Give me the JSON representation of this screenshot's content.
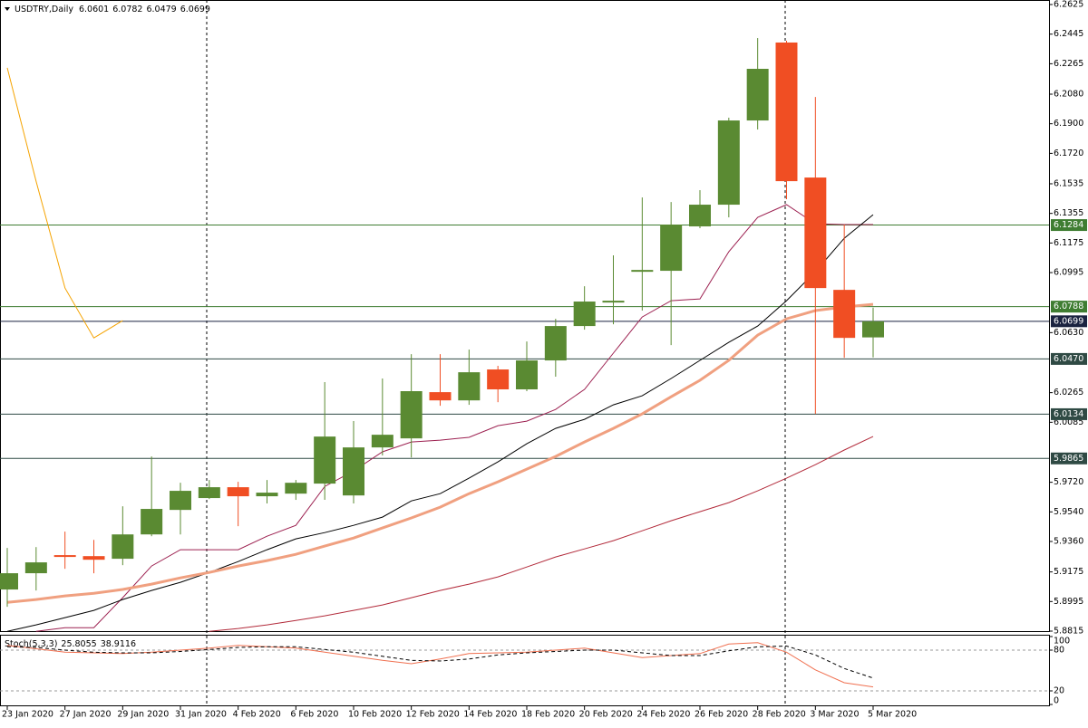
{
  "chart_data": {
    "type": "candlestick",
    "title": "USDTRY,Daily",
    "x": [
      "23 Jan 2020",
      null,
      "27 Jan 2020",
      null,
      "29 Jan 2020",
      null,
      "31 Jan 2020",
      null,
      "4 Feb 2020",
      null,
      "6 Feb 2020",
      null,
      "10 Feb 2020",
      null,
      "12 Feb 2020",
      null,
      "14 Feb 2020",
      null,
      "18 Feb 2020",
      null,
      "20 Feb 2020",
      null,
      "24 Feb 2020",
      null,
      "26 Feb 2020",
      null,
      "28 Feb 2020",
      null,
      "3 Mar 2020",
      null,
      "5 Mar 2020"
    ],
    "open": [
      5.9068,
      5.9167,
      5.9277,
      5.9271,
      5.9255,
      5.9403,
      5.9552,
      5.9624,
      5.969,
      5.9635,
      5.9651,
      5.9712,
      5.964,
      5.9932,
      5.9987,
      6.0268,
      6.0218,
      6.0406,
      6.0285,
      6.0461,
      6.067,
      6.0813,
      6.1,
      6.1006,
      6.1276,
      6.1408,
      6.192,
      6.2394,
      6.1573,
      6.089,
      6.0601
    ],
    "high": [
      5.9321,
      5.9326,
      5.942,
      5.937,
      5.9574,
      5.9877,
      5.9717,
      5.9734,
      5.9723,
      5.9734,
      5.9734,
      6.0329,
      6.0092,
      6.0351,
      6.0499,
      6.0499,
      6.0527,
      6.0428,
      6.0576,
      6.0714,
      6.0912,
      6.11,
      6.1452,
      6.1424,
      6.1496,
      6.1937,
      6.2421,
      6.2405,
      6.2063,
      6.1287,
      6.0782
    ],
    "low": [
      5.8963,
      5.9062,
      5.9194,
      5.9167,
      5.9216,
      5.9392,
      5.9403,
      5.9618,
      5.9453,
      5.9591,
      5.9613,
      5.9613,
      5.9591,
      5.9883,
      5.9871,
      6.0185,
      6.0191,
      6.0207,
      6.0274,
      6.0362,
      6.0648,
      6.0681,
      6.0764,
      6.0554,
      6.1265,
      6.1331,
      6.1865,
      6.1441,
      6.0136,
      6.0477,
      6.0479
    ],
    "close": [
      5.9167,
      5.9233,
      5.9266,
      5.9249,
      5.9403,
      5.9558,
      5.9668,
      5.969,
      5.9635,
      5.9657,
      5.9717,
      5.9998,
      5.9932,
      6.0009,
      6.0274,
      6.0218,
      6.0389,
      6.0285,
      6.0461,
      6.067,
      6.0819,
      6.0824,
      6.1011,
      6.1287,
      6.1408,
      6.192,
      6.2234,
      6.1551,
      6.0901,
      6.0598,
      6.0699
    ],
    "up_color": "#5a8a32",
    "down_color": "#f04e23",
    "ylim": [
      5.8815,
      6.2625
    ],
    "yticks": [
      6.2625,
      6.2445,
      6.2265,
      {
        "value": 6.208,
        "label": "6.2080"
      },
      {
        "value": 6.19,
        "label": "6.1900"
      },
      {
        "value": 6.172,
        "label": "6.1720"
      },
      6.1535,
      6.1355,
      6.1175,
      6.0995,
      {
        "value": 6.063,
        "label": "6.0630"
      },
      6.0265,
      6.0085,
      {
        "value": 5.972,
        "label": "5.9720"
      },
      {
        "value": 5.954,
        "label": "5.9540"
      },
      {
        "value": 5.936,
        "label": "5.9360"
      },
      5.9175,
      5.8995,
      5.8815
    ],
    "overlays": [
      {
        "color": "#b22a3a",
        "width": 1,
        "values": [
          null,
          null,
          null,
          null,
          null,
          null,
          null,
          5.8814,
          5.8831,
          5.8853,
          5.888,
          5.8908,
          5.8941,
          5.8974,
          5.9018,
          5.9062,
          5.9101,
          5.9145,
          5.9205,
          5.9266,
          5.9315,
          5.9365,
          5.9425,
          5.9486,
          5.9541,
          5.9596,
          5.9668,
          5.9745,
          5.9827,
          5.9916,
          5.9998
        ]
      },
      {
        "color": "#9c2050",
        "width": 1,
        "values": [
          null,
          5.8814,
          5.8836,
          5.8836,
          5.9018,
          5.9211,
          5.931,
          5.931,
          5.931,
          5.9392,
          5.9458,
          5.9695,
          5.9789,
          5.9905,
          5.9965,
          5.9976,
          5.9993,
          6.0064,
          6.0092,
          6.0163,
          6.0285,
          6.0505,
          6.0725,
          6.0824,
          6.0835,
          6.1122,
          6.1331,
          6.1408,
          6.1292,
          6.1287,
          6.1287
        ]
      },
      {
        "color": "#000000",
        "width": 1,
        "values": [
          5.8814,
          5.8853,
          5.8897,
          5.8941,
          5.9007,
          5.9062,
          5.9112,
          5.9172,
          5.9238,
          5.931,
          5.9376,
          5.9414,
          5.9458,
          5.9508,
          5.9607,
          5.9651,
          5.9745,
          5.9844,
          5.9954,
          6.0048,
          6.0103,
          6.0191,
          6.0246,
          6.0351,
          6.0461,
          6.0571,
          6.067,
          6.0824,
          6.1,
          6.1204,
          6.1347
        ]
      },
      {
        "color": "#f0a080",
        "width": 3,
        "values": [
          5.899,
          5.9007,
          5.9029,
          5.9045,
          5.9068,
          5.9101,
          5.9139,
          5.9172,
          5.9211,
          5.9244,
          5.9282,
          5.9332,
          5.9381,
          5.9442,
          5.9503,
          5.9569,
          5.9651,
          5.9723,
          5.98,
          5.9877,
          5.9965,
          6.0048,
          6.0136,
          6.024,
          6.034,
          6.0461,
          6.0615,
          6.0714,
          6.0764,
          6.0786,
          6.0802
        ]
      },
      {
        "color": "#f5a300",
        "width": 1,
        "values": [
          6.224,
          6.1551,
          6.0901,
          6.0598,
          6.0703,
          null,
          null,
          null,
          null,
          null,
          null,
          null,
          null,
          null,
          null,
          null,
          null,
          null,
          null,
          null,
          null,
          null,
          null,
          null,
          null,
          null,
          null,
          null,
          null,
          null,
          null
        ]
      }
    ],
    "levels": [
      6.1284,
      6.0788,
      6.0699,
      {
        "value": 6.047,
        "label": "6.0470"
      },
      6.0134,
      5.9865
    ],
    "level_colors": [
      "#3f7d32",
      "#3f7d32",
      "#1a2340",
      "#2f4a44",
      "#2f4a44",
      "#2f4a44"
    ],
    "indicator": {
      "title": "Stoch(5,3,3)",
      "ylim": [
        0,
        100
      ],
      "yticks": [
        0,
        20,
        80,
        100
      ],
      "series": [
        {
          "color": "#f07050",
          "dash": false,
          "values": [
            87,
            82,
            77,
            76,
            75,
            77,
            80,
            83,
            87,
            85,
            83,
            77,
            71,
            65,
            60,
            67,
            75,
            76,
            77,
            80,
            83,
            76,
            69,
            72,
            75,
            89,
            91,
            77,
            51,
            32,
            25.8055
          ]
        },
        {
          "color": "#000000",
          "dash": true,
          "values": [
            85,
            84,
            80,
            77,
            76,
            76,
            78,
            81,
            84,
            85,
            85,
            81,
            77,
            71,
            65,
            64,
            67,
            73,
            76,
            78,
            80,
            80,
            76,
            72,
            72,
            79,
            85,
            86,
            73,
            53,
            38.9116
          ]
        }
      ]
    }
  }
}
